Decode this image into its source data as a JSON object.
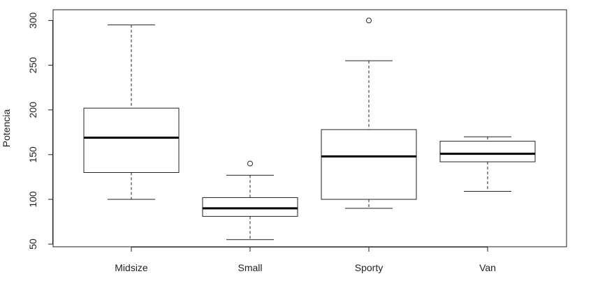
{
  "chart_data": {
    "type": "boxplot",
    "title": "",
    "xlabel": "",
    "ylabel": "Potencia",
    "ylim": [
      47,
      312
    ],
    "yticks": [
      50,
      100,
      150,
      200,
      250,
      300
    ],
    "grid": false,
    "categories": [
      "Midsize",
      "Small",
      "Sporty",
      "Van"
    ],
    "boxes": [
      {
        "category": "Midsize",
        "whisker_low": 100,
        "q1": 130,
        "median": 169,
        "q3": 202,
        "whisker_high": 295,
        "outliers": []
      },
      {
        "category": "Small",
        "whisker_low": 55,
        "q1": 81,
        "median": 90,
        "q3": 102,
        "whisker_high": 127,
        "outliers": [
          140
        ]
      },
      {
        "category": "Sporty",
        "whisker_low": 90,
        "q1": 100,
        "median": 148,
        "q3": 178,
        "whisker_high": 255,
        "outliers": [
          300
        ]
      },
      {
        "category": "Van",
        "whisker_low": 109,
        "q1": 142,
        "median": 151,
        "q3": 165,
        "whisker_high": 170,
        "outliers": []
      }
    ]
  }
}
